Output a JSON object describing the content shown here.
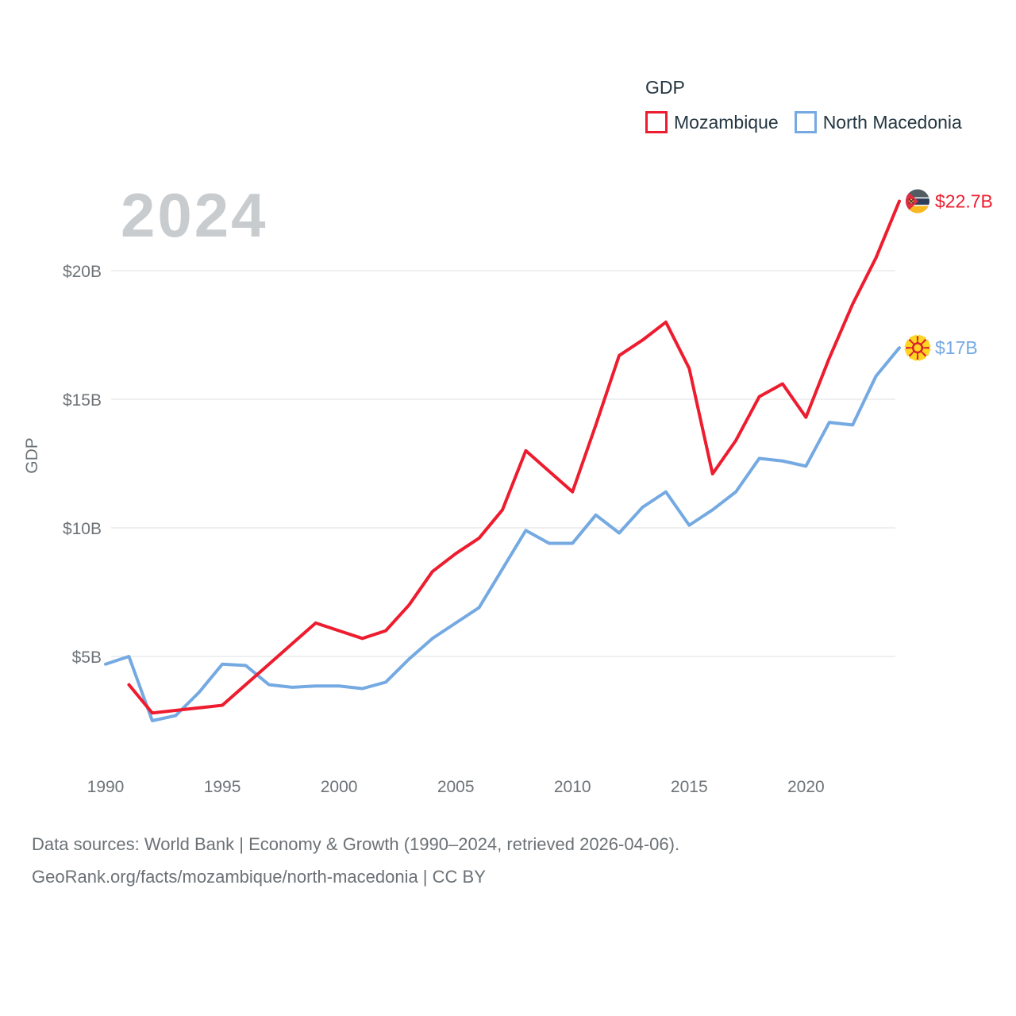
{
  "watermark": "2024",
  "legend": {
    "title": "GDP",
    "items": [
      {
        "label": "Mozambique",
        "color": "#ed1c2e"
      },
      {
        "label": "North Macedonia",
        "color": "#74a9e2"
      }
    ]
  },
  "chart_data": {
    "type": "line",
    "title": "GDP",
    "y_axis_title": "GDP",
    "grid": true,
    "legend_position": "top-right",
    "x_range": [
      1990,
      2024
    ],
    "ylim": [
      2,
      23.5
    ],
    "y_ticks": [
      {
        "value": 5,
        "label": "$5B"
      },
      {
        "value": 10,
        "label": "$10B"
      },
      {
        "value": 15,
        "label": "$15B"
      },
      {
        "value": 20,
        "label": "$20B"
      }
    ],
    "x_ticks": [
      {
        "value": 1990,
        "label": "1990"
      },
      {
        "value": 1995,
        "label": "1995"
      },
      {
        "value": 2000,
        "label": "2000"
      },
      {
        "value": 2005,
        "label": "2005"
      },
      {
        "value": 2010,
        "label": "2010"
      },
      {
        "value": 2015,
        "label": "2015"
      },
      {
        "value": 2020,
        "label": "2020"
      }
    ],
    "series": [
      {
        "name": "Mozambique",
        "flag": "mozambique",
        "color": "#ed1c2e",
        "start_year": 1991,
        "end_label": "$22.7B",
        "values": [
          3.9,
          2.8,
          2.9,
          3.0,
          3.1,
          3.9,
          4.7,
          5.5,
          6.3,
          6.0,
          5.7,
          6.0,
          7.0,
          8.3,
          9.0,
          9.6,
          10.7,
          13.0,
          12.2,
          11.4,
          14.0,
          16.7,
          17.3,
          18.0,
          16.2,
          12.1,
          13.4,
          15.1,
          15.6,
          14.3,
          16.6,
          18.7,
          20.5,
          22.7
        ]
      },
      {
        "name": "North Macedonia",
        "flag": "north-macedonia",
        "color": "#74a9e2",
        "start_year": 1990,
        "end_label": "$17B",
        "values": [
          4.7,
          5.0,
          2.5,
          2.7,
          3.6,
          4.7,
          4.65,
          3.9,
          3.8,
          3.85,
          3.85,
          3.75,
          4.0,
          4.9,
          5.7,
          6.3,
          6.9,
          8.4,
          9.9,
          9.4,
          9.4,
          10.5,
          9.8,
          10.8,
          11.4,
          10.1,
          10.7,
          11.4,
          12.7,
          12.6,
          12.4,
          14.1,
          14.0,
          15.9,
          17.0
        ]
      }
    ]
  },
  "footer": {
    "line1": "Data sources: World Bank | Economy & Growth (1990–2024, retrieved 2026-04-06).",
    "line2": "GeoRank.org/facts/mozambique/north-macedonia | CC BY"
  }
}
